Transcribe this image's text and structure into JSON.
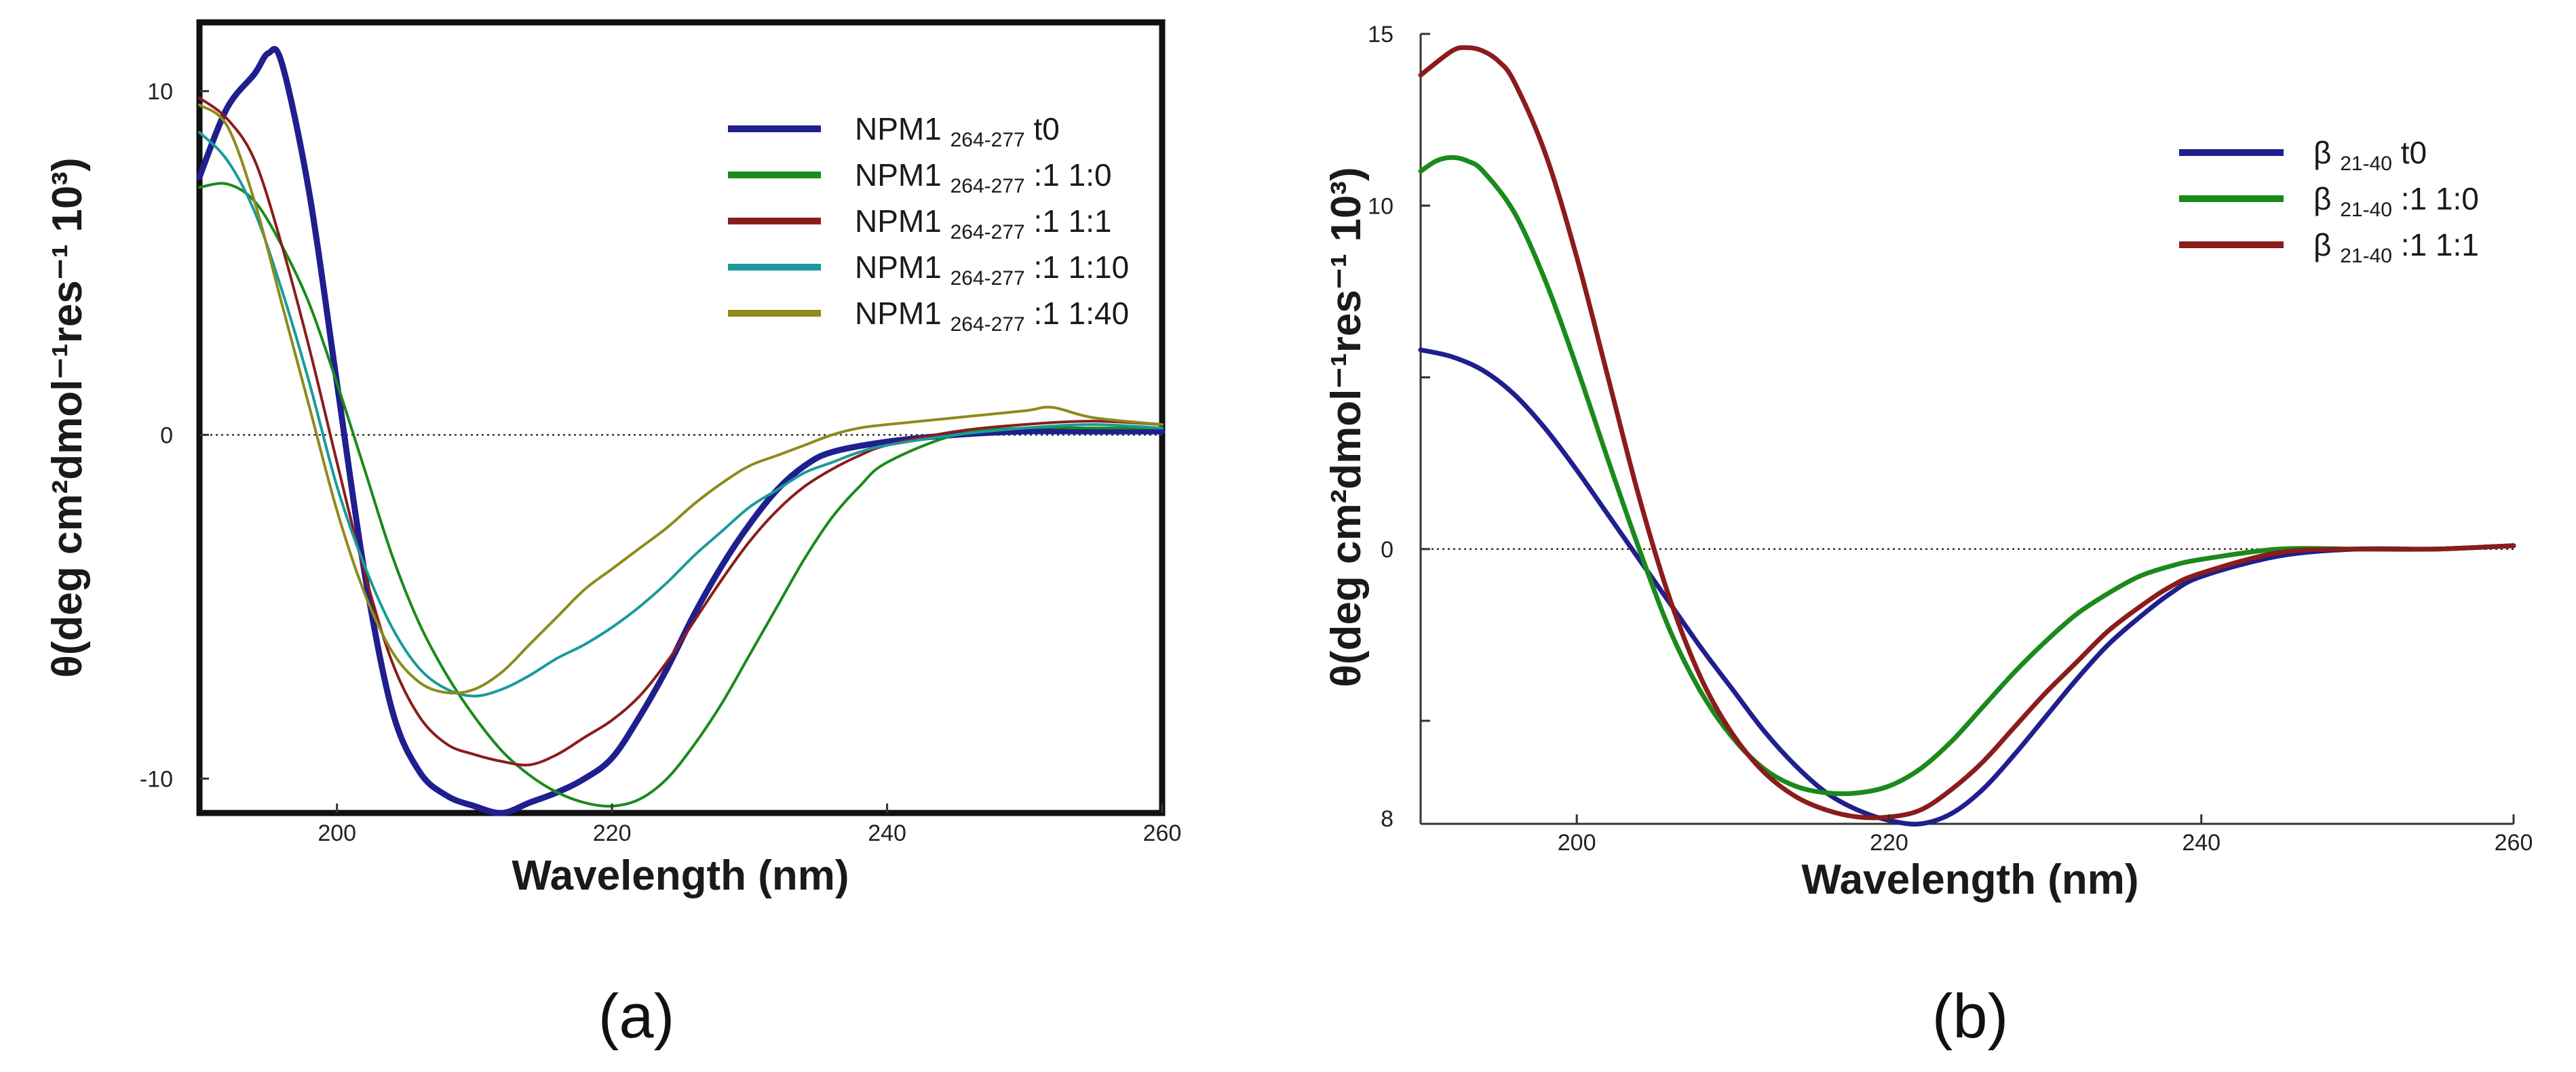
{
  "chart_data": [
    {
      "type": "line",
      "panel_label": "(a)",
      "xlabel": "Wavelength (nm)",
      "ylabel": "θ(deg cm²dmol⁻¹res⁻¹ 10³)",
      "xlim": [
        190,
        260
      ],
      "ylim": [
        -11,
        12
      ],
      "x_ticks": [
        200,
        220,
        240,
        260
      ],
      "y_ticks": [
        -10,
        0,
        10
      ],
      "zero_line": true,
      "legend_position": "top-right",
      "series": [
        {
          "name": "NPM1 264-277 t0",
          "legend_main": "NPM1",
          "legend_sub": "264-277",
          "legend_suffix": " t0",
          "color": "#1f1f8f",
          "stroke_width": 9,
          "x": [
            190,
            192,
            194,
            195,
            196,
            198,
            200,
            202,
            204,
            206,
            208,
            210,
            212,
            214,
            216,
            218,
            220,
            222,
            224,
            226,
            228,
            230,
            232,
            234,
            236,
            240,
            245,
            250,
            255,
            260
          ],
          "y": [
            7.5,
            9.5,
            10.5,
            11.1,
            10.8,
            7.0,
            1.5,
            -4.0,
            -8.0,
            -9.8,
            -10.5,
            -10.8,
            -11.0,
            -10.7,
            -10.4,
            -10.0,
            -9.4,
            -8.2,
            -6.8,
            -5.2,
            -3.8,
            -2.6,
            -1.6,
            -0.9,
            -0.5,
            -0.2,
            0.0,
            0.1,
            0.1,
            0.1
          ]
        },
        {
          "name": "NPM1 264-277 :1 1:0",
          "legend_main": "NPM1",
          "legend_sub": "264-277",
          "legend_suffix": " :1 1:0",
          "color": "#1a8a1a",
          "stroke_width": 4,
          "x": [
            190,
            192,
            194,
            196,
            198,
            200,
            202,
            204,
            206,
            208,
            210,
            212,
            214,
            216,
            218,
            220,
            222,
            224,
            226,
            228,
            230,
            232,
            234,
            236,
            238,
            240,
            245,
            250,
            255,
            260
          ],
          "y": [
            7.2,
            7.3,
            6.8,
            5.5,
            3.8,
            1.5,
            -1.0,
            -3.5,
            -5.5,
            -7.0,
            -8.2,
            -9.2,
            -9.9,
            -10.4,
            -10.7,
            -10.8,
            -10.6,
            -10.0,
            -9.0,
            -7.8,
            -6.4,
            -5.0,
            -3.6,
            -2.4,
            -1.5,
            -0.8,
            0.0,
            0.2,
            0.2,
            0.2
          ]
        },
        {
          "name": "NPM1 264-277 :1 1:1",
          "legend_main": "NPM1",
          "legend_sub": "264-277",
          "legend_suffix": " :1 1:1",
          "color": "#8b1c1c",
          "stroke_width": 4,
          "x": [
            190,
            192,
            194,
            196,
            198,
            200,
            202,
            204,
            206,
            208,
            210,
            212,
            214,
            216,
            218,
            220,
            222,
            224,
            226,
            228,
            230,
            232,
            234,
            236,
            238,
            240,
            245,
            250,
            255,
            260
          ],
          "y": [
            9.8,
            9.2,
            8.0,
            5.5,
            2.5,
            -0.8,
            -4.0,
            -6.6,
            -8.2,
            -9.0,
            -9.3,
            -9.5,
            -9.6,
            -9.3,
            -8.8,
            -8.3,
            -7.6,
            -6.6,
            -5.4,
            -4.2,
            -3.1,
            -2.2,
            -1.5,
            -1.0,
            -0.6,
            -0.3,
            0.1,
            0.3,
            0.4,
            0.3
          ]
        },
        {
          "name": "NPM1 264-277 :1 1:10",
          "legend_main": "NPM1",
          "legend_sub": "264-277",
          "legend_suffix": " :1 1:10",
          "color": "#1a9a9a",
          "stroke_width": 4,
          "x": [
            190,
            192,
            194,
            196,
            198,
            200,
            202,
            204,
            206,
            208,
            210,
            212,
            214,
            216,
            218,
            220,
            222,
            224,
            226,
            228,
            230,
            232,
            234,
            236,
            238,
            240,
            245,
            250,
            255,
            260
          ],
          "y": [
            8.8,
            8.0,
            6.5,
            4.2,
            1.5,
            -1.5,
            -3.8,
            -5.6,
            -6.8,
            -7.4,
            -7.6,
            -7.4,
            -7.0,
            -6.5,
            -6.1,
            -5.6,
            -5.0,
            -4.3,
            -3.5,
            -2.8,
            -2.1,
            -1.6,
            -1.1,
            -0.8,
            -0.5,
            -0.3,
            0.0,
            0.2,
            0.3,
            0.2
          ]
        },
        {
          "name": "NPM1 264-277 :1 1:40",
          "legend_main": "NPM1",
          "legend_sub": "264-277",
          "legend_suffix": " :1 1:40",
          "color": "#8e8a1c",
          "stroke_width": 4,
          "x": [
            190,
            192,
            194,
            196,
            198,
            200,
            202,
            204,
            206,
            208,
            210,
            212,
            214,
            216,
            218,
            220,
            222,
            224,
            226,
            228,
            230,
            232,
            234,
            236,
            238,
            240,
            245,
            250,
            252,
            255,
            260
          ],
          "y": [
            9.6,
            9.0,
            6.8,
            3.8,
            0.8,
            -2.2,
            -4.6,
            -6.3,
            -7.2,
            -7.5,
            -7.4,
            -6.9,
            -6.1,
            -5.3,
            -4.5,
            -3.9,
            -3.3,
            -2.7,
            -2.0,
            -1.4,
            -0.9,
            -0.6,
            -0.3,
            0.0,
            0.2,
            0.3,
            0.5,
            0.7,
            0.8,
            0.5,
            0.3
          ]
        }
      ]
    },
    {
      "type": "line",
      "panel_label": "(b)",
      "xlabel": "Wavelength (nm)",
      "ylabel": "θ(deg cm²dmol⁻¹res⁻¹ 10³)",
      "xlim": [
        190,
        260
      ],
      "ylim": [
        -8,
        15
      ],
      "x_ticks": [
        200,
        220,
        240,
        260
      ],
      "y_ticks": [
        0,
        10,
        15
      ],
      "y_tick_labels": [
        "0",
        "10",
        "15"
      ],
      "bottom_label": "8",
      "zero_line": true,
      "legend_position": "top-right",
      "series": [
        {
          "name": "β 21-40 t0",
          "legend_main": "β",
          "legend_sub": "21-40",
          "legend_suffix": " t0",
          "color": "#1f1f8f",
          "stroke_width": 7,
          "x": [
            190,
            192,
            194,
            196,
            198,
            200,
            202,
            204,
            206,
            208,
            210,
            212,
            214,
            216,
            218,
            220,
            222,
            224,
            226,
            228,
            230,
            232,
            234,
            236,
            238,
            240,
            245,
            250,
            255,
            260
          ],
          "y": [
            5.8,
            5.6,
            5.2,
            4.5,
            3.5,
            2.3,
            1.0,
            -0.3,
            -1.6,
            -2.9,
            -4.1,
            -5.3,
            -6.3,
            -7.1,
            -7.6,
            -7.9,
            -8.0,
            -7.7,
            -7.0,
            -6.0,
            -4.9,
            -3.8,
            -2.8,
            -2.0,
            -1.3,
            -0.8,
            -0.2,
            0.0,
            0.0,
            0.1
          ]
        },
        {
          "name": "β 21-40 :1 1:0",
          "legend_main": "β",
          "legend_sub": "21-40",
          "legend_suffix": " :1 1:0",
          "color": "#1a8a1a",
          "stroke_width": 7,
          "x": [
            190,
            191,
            192,
            193,
            194,
            196,
            198,
            200,
            202,
            204,
            206,
            208,
            210,
            212,
            214,
            216,
            218,
            220,
            222,
            224,
            226,
            228,
            230,
            232,
            234,
            236,
            238,
            240,
            245,
            250,
            255,
            260
          ],
          "y": [
            11.0,
            11.3,
            11.4,
            11.3,
            11.0,
            9.8,
            7.8,
            5.3,
            2.6,
            0.0,
            -2.4,
            -4.2,
            -5.5,
            -6.4,
            -6.9,
            -7.1,
            -7.1,
            -6.9,
            -6.4,
            -5.6,
            -4.6,
            -3.6,
            -2.7,
            -1.9,
            -1.3,
            -0.8,
            -0.5,
            -0.3,
            0.0,
            0.0,
            0.0,
            0.1
          ]
        },
        {
          "name": "β 21-40 :1 1:1",
          "legend_main": "β",
          "legend_sub": "21-40",
          "legend_suffix": " :1 1:1",
          "color": "#8b1c1c",
          "stroke_width": 7,
          "x": [
            190,
            192,
            193,
            194,
            195,
            196,
            198,
            200,
            202,
            204,
            206,
            208,
            210,
            212,
            214,
            216,
            218,
            220,
            222,
            224,
            226,
            228,
            230,
            232,
            234,
            236,
            238,
            240,
            245,
            250,
            255,
            260
          ],
          "y": [
            13.8,
            14.5,
            14.6,
            14.5,
            14.2,
            13.6,
            11.5,
            8.5,
            5.0,
            1.5,
            -1.5,
            -3.8,
            -5.4,
            -6.5,
            -7.2,
            -7.6,
            -7.8,
            -7.8,
            -7.6,
            -7.0,
            -6.2,
            -5.2,
            -4.2,
            -3.3,
            -2.4,
            -1.7,
            -1.1,
            -0.7,
            -0.1,
            0.0,
            0.0,
            0.1
          ]
        }
      ]
    }
  ]
}
